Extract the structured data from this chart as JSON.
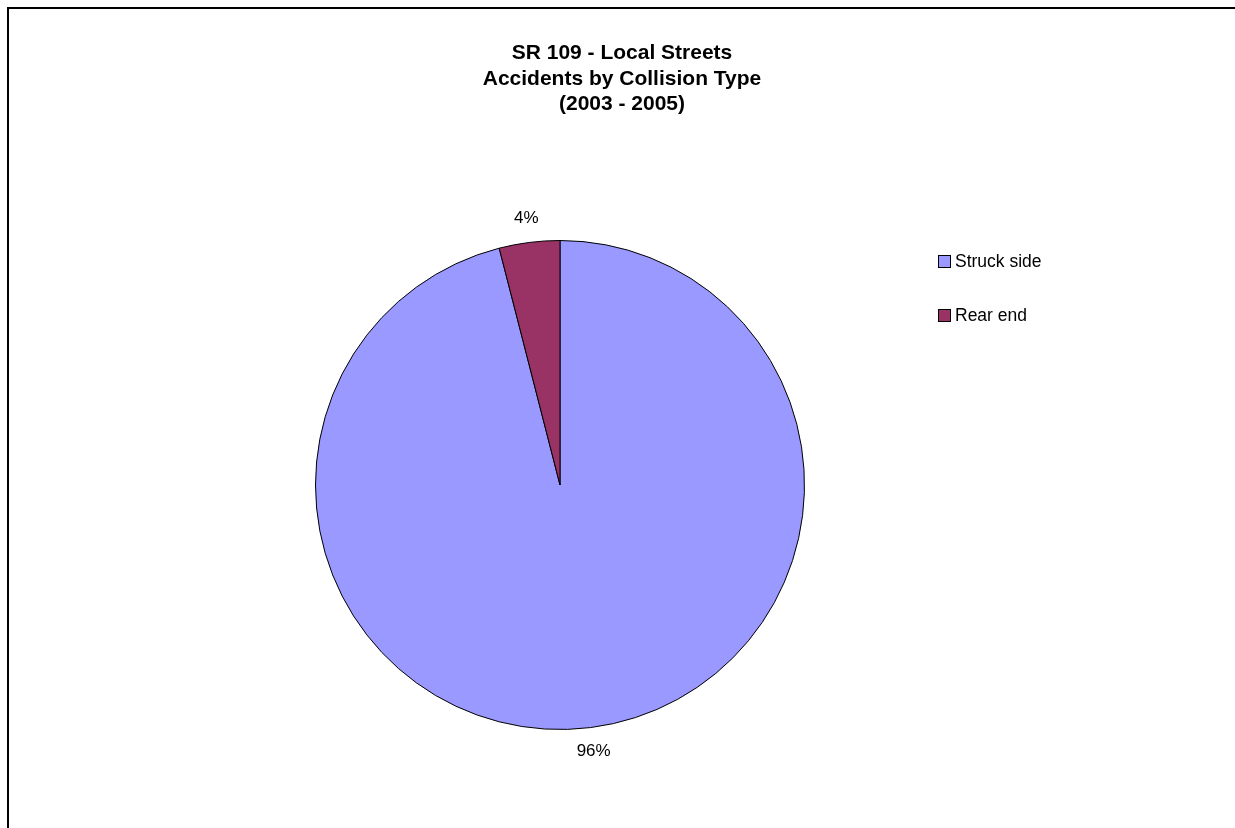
{
  "chart_data": {
    "type": "pie",
    "title": "SR 109 - Local Streets\nAccidents by Collision Type\n(2003 - 2005)",
    "categories": [
      "Struck side",
      "Rear end"
    ],
    "values": [
      96,
      4
    ],
    "colors": [
      "#9999ff",
      "#993366"
    ],
    "value_labels": [
      "96%",
      "4%"
    ],
    "legend": "right"
  }
}
